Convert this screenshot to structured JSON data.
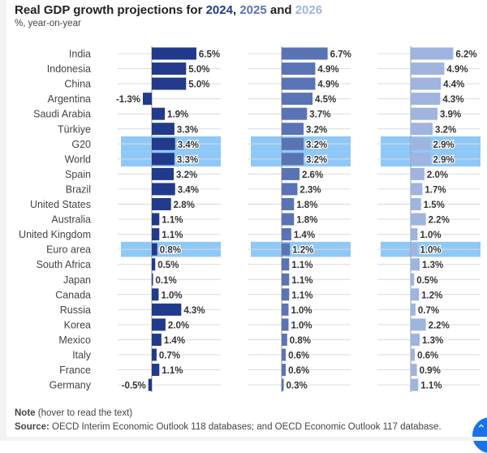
{
  "title": {
    "prefix": "Real GDP growth projections for ",
    "y1": "2024",
    "sep1": ", ",
    "y2": "2025",
    "sep2": " and ",
    "y3": "2026"
  },
  "subtitle": "%, year-on-year",
  "footer": {
    "note_bold": "Note",
    "note_text": " (hover to read the text)",
    "source_bold": "Source:",
    "source_text": " OECD Interim Economic Outlook 118 databases; and OECD Economic Outlook 117 database."
  },
  "scroll_top_icon": "chevron-up-icon",
  "colors": {
    "2024": "#213a8b",
    "2025": "#5a73b4",
    "2026": "#9fb4df",
    "highlight": "#8ec8f8"
  },
  "chart_data": {
    "type": "bar",
    "orientation": "horizontal",
    "unit": "%",
    "categories": [
      "India",
      "Indonesia",
      "China",
      "Argentina",
      "Saudi Arabia",
      "Türkiye",
      "G20",
      "World",
      "Spain",
      "Brazil",
      "United States",
      "Australia",
      "United Kingdom",
      "Euro area",
      "South Africa",
      "Japan",
      "Canada",
      "Russia",
      "Korea",
      "Mexico",
      "Italy",
      "France",
      "Germany"
    ],
    "highlighted": [
      "G20",
      "World",
      "Euro area"
    ],
    "series": [
      {
        "name": "2024",
        "values": [
          6.5,
          5.0,
          5.0,
          -1.3,
          1.9,
          3.3,
          3.4,
          3.3,
          3.2,
          3.4,
          2.8,
          1.1,
          1.1,
          0.8,
          0.5,
          0.1,
          1.0,
          4.3,
          2.0,
          1.4,
          0.7,
          1.1,
          -0.5
        ]
      },
      {
        "name": "2025",
        "values": [
          6.7,
          4.9,
          4.9,
          4.5,
          3.7,
          3.2,
          3.2,
          3.2,
          2.6,
          2.3,
          1.8,
          1.8,
          1.4,
          1.2,
          1.1,
          1.1,
          1.1,
          1.0,
          1.0,
          0.8,
          0.6,
          0.6,
          0.3
        ]
      },
      {
        "name": "2026",
        "values": [
          6.2,
          4.9,
          4.4,
          4.3,
          3.9,
          3.2,
          2.9,
          2.9,
          2.0,
          1.7,
          1.5,
          2.2,
          1.0,
          1.0,
          1.3,
          0.5,
          1.2,
          0.7,
          2.2,
          1.3,
          0.6,
          0.9,
          1.1
        ]
      }
    ],
    "grid": true,
    "legend": "title"
  }
}
